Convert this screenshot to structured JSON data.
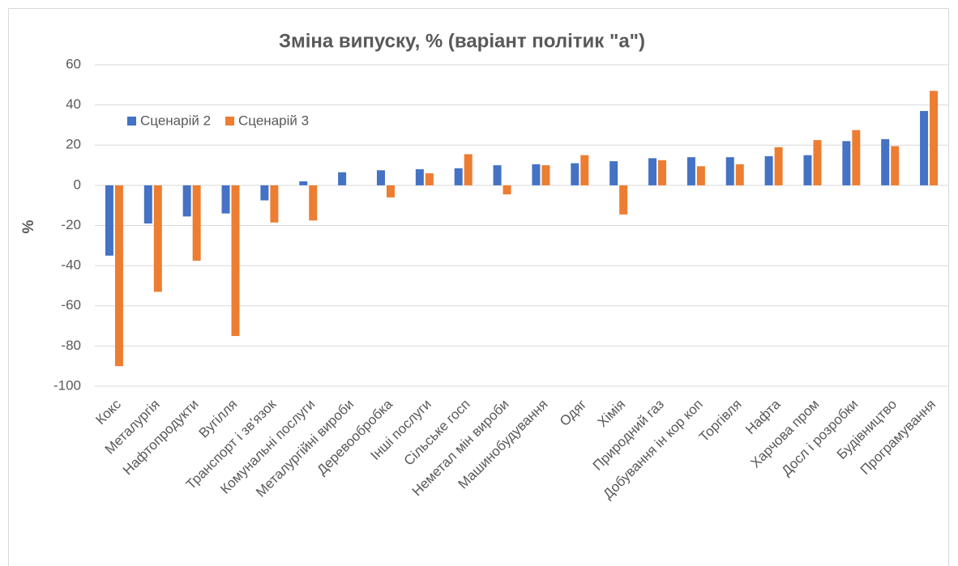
{
  "chart_data": {
    "type": "bar",
    "title": "Зміна випуску, % (варіант політик \"а\")",
    "ylabel": "%",
    "categories": [
      "Кокс",
      "Металургія",
      "Нафтопродукти",
      "Вугілля",
      "Транспорт і зв'язок",
      "Комунальні послуги",
      "Металургійні вироби",
      "Деревообробка",
      "Інші послуги",
      "Сільське госп",
      "Неметал мін вироби",
      "Машинобудування",
      "Одяг",
      "Хімія",
      "Природний газ",
      "Добування ін кор коп",
      "Торгівля",
      "Нафта",
      "Харчова пром",
      "Досл і розробки",
      "Будівництво",
      "Програмування"
    ],
    "series": [
      {
        "name": "Сценарій 2",
        "color": "#4472c4",
        "values": [
          -35,
          -19,
          -15.5,
          -14,
          -7.5,
          2,
          6.5,
          7.5,
          8,
          8.5,
          10,
          10.5,
          11,
          12,
          13.5,
          14,
          14,
          14.5,
          15,
          22,
          23,
          37
        ]
      },
      {
        "name": "Сценарій 3",
        "color": "#ed7d31",
        "values": [
          -90,
          -53,
          -37.5,
          -75,
          -18.5,
          -17.5,
          0,
          -6,
          6,
          15.5,
          -4.5,
          10,
          15,
          -14.5,
          12.5,
          9.5,
          10.5,
          19,
          22.5,
          27.5,
          19.5,
          47
        ]
      }
    ],
    "ylim": [
      -100,
      60
    ],
    "yticks": [
      -100,
      -80,
      -60,
      -40,
      -20,
      0,
      20,
      40,
      60
    ],
    "grid": true,
    "legend": "upper left"
  }
}
